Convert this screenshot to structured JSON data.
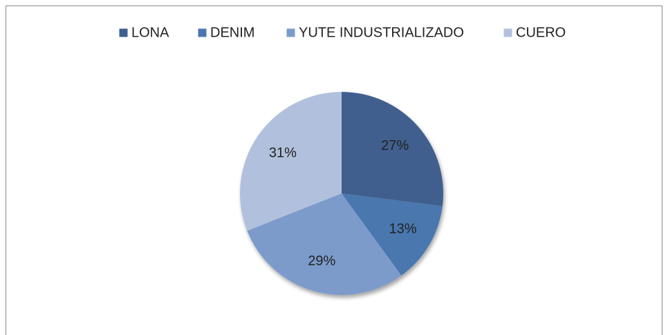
{
  "chart_data": {
    "type": "pie",
    "categories": [
      "LONA",
      "DENIM",
      "YUTE INDUSTRIALIZADO",
      "CUERO"
    ],
    "values": [
      27,
      13,
      29,
      31
    ],
    "value_labels": [
      "27%",
      "13%",
      "29%",
      "31%"
    ],
    "colors": [
      "#3f5f8e",
      "#4a77ae",
      "#7b9bcb",
      "#b1c1dd"
    ],
    "legend": "top"
  }
}
